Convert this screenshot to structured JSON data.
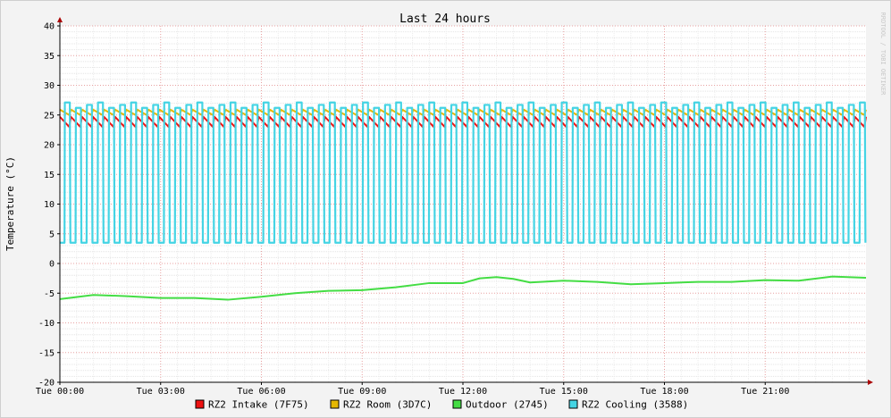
{
  "chart_data": {
    "type": "line",
    "title": "Last 24 hours",
    "ylabel": "Temperature (°C)",
    "xlabel": "",
    "watermark": "RRDTOOL / TOBI OETIKER",
    "ylim": [
      -20,
      40
    ],
    "yticks": [
      -20,
      -15,
      -10,
      -5,
      0,
      5,
      10,
      15,
      20,
      25,
      30,
      35,
      40
    ],
    "x_start_hour": 0,
    "x_end_hour": 24,
    "xticks": [
      {
        "hour": 0,
        "label": "Tue 00:00"
      },
      {
        "hour": 3,
        "label": "Tue 03:00"
      },
      {
        "hour": 6,
        "label": "Tue 06:00"
      },
      {
        "hour": 9,
        "label": "Tue 09:00"
      },
      {
        "hour": 12,
        "label": "Tue 12:00"
      },
      {
        "hour": 15,
        "label": "Tue 15:00"
      },
      {
        "hour": 18,
        "label": "Tue 18:00"
      },
      {
        "hour": 21,
        "label": "Tue 21:00"
      }
    ],
    "grid": true,
    "legend_position": "bottom",
    "series": [
      {
        "name": "RZ2 Intake (7F75)",
        "color": "#ee1111",
        "pattern": "sawtooth",
        "min": 23.0,
        "max": 24.7,
        "cycles": 73
      },
      {
        "name": "RZ2 Room (3D7C)",
        "color": "#e6b800",
        "pattern": "sawtooth",
        "min": 25.0,
        "max": 25.9,
        "cycles": 73
      },
      {
        "name": "Outdoor (2745)",
        "color": "#44dd44",
        "pattern": "trend",
        "x": [
          0,
          1,
          2,
          3,
          4,
          5,
          6,
          7,
          8,
          9,
          10,
          11,
          12,
          12.5,
          13,
          13.5,
          14,
          15,
          16,
          17,
          18,
          19,
          20,
          21,
          22,
          23,
          24
        ],
        "y": [
          -6.0,
          -5.3,
          -5.5,
          -5.8,
          -5.8,
          -6.1,
          -5.6,
          -5.0,
          -4.6,
          -4.5,
          -4.0,
          -3.3,
          -3.3,
          -2.5,
          -2.3,
          -2.6,
          -3.2,
          -2.9,
          -3.1,
          -3.5,
          -3.3,
          -3.1,
          -3.1,
          -2.8,
          -2.9,
          -2.2,
          -2.4
        ]
      },
      {
        "name": "RZ2 Cooling (3588)",
        "color": "#44d4e4",
        "pattern": "square",
        "low": 3.5,
        "high": 26.5,
        "cycles": 73
      }
    ]
  }
}
